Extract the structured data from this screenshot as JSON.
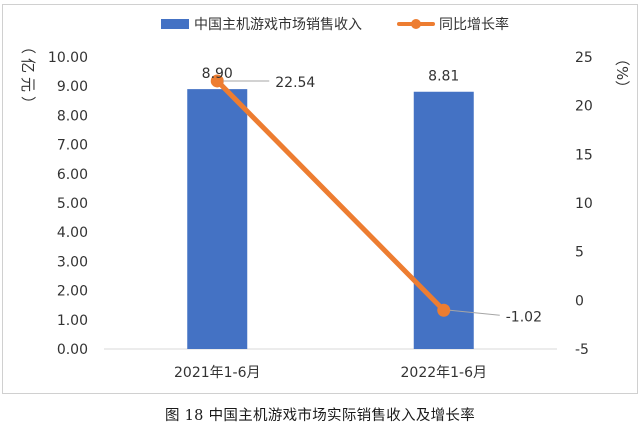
{
  "chart_data": {
    "type": "bar+line",
    "categories": [
      "2021年1-6月",
      "2022年1-6月"
    ],
    "series": [
      {
        "name": "中国主机游戏市场销售收入",
        "type": "bar",
        "axis": "left",
        "values": [
          8.9,
          8.81
        ],
        "labels": [
          "8.90",
          "8.81"
        ],
        "color": "#4472C4"
      },
      {
        "name": "同比增长率",
        "type": "line",
        "axis": "right",
        "values": [
          22.54,
          -1.02
        ],
        "labels": [
          "22.54",
          "-1.02"
        ],
        "color": "#ED7D31"
      }
    ],
    "y_left": {
      "label": "亿元",
      "min": 0,
      "max": 10,
      "step": 1,
      "ticks": [
        "0.00",
        "1.00",
        "2.00",
        "3.00",
        "4.00",
        "5.00",
        "6.00",
        "7.00",
        "8.00",
        "9.00",
        "10.00"
      ]
    },
    "y_right": {
      "label": "%",
      "min": -5,
      "max": 25,
      "step": 5,
      "ticks": [
        "-5",
        "0",
        "5",
        "10",
        "15",
        "20",
        "25"
      ]
    },
    "legend_position": "top",
    "grid": false
  },
  "caption": "图 18 中国主机游戏市场实际销售收入及增长率"
}
